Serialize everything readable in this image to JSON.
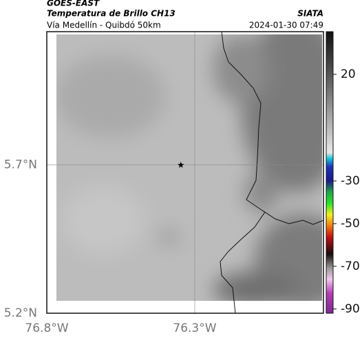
{
  "header": {
    "title": "GOES-EAST",
    "subtitle": "Temperatura de Brillo CH13",
    "source": "SIATA",
    "route": "Vía Medellín - Quibdó 50km",
    "datetime": "2024-01-30 07:49"
  },
  "map": {
    "xlim": [
      -76.8,
      -75.865
    ],
    "ylim": [
      5.2,
      6.15
    ],
    "xticks": [
      {
        "value": -76.8,
        "label": "76.8°W"
      },
      {
        "value": -76.3,
        "label": "76.3°W"
      }
    ],
    "yticks": [
      {
        "value": 5.2,
        "label": "5.2°N"
      },
      {
        "value": 5.7,
        "label": "5.7°N"
      }
    ],
    "marker": {
      "lon": -76.347,
      "lat": 5.7
    }
  },
  "colorbar": {
    "lim": [
      40,
      -92
    ],
    "ticks": [
      20,
      -30,
      -50,
      -70,
      -90
    ]
  }
}
